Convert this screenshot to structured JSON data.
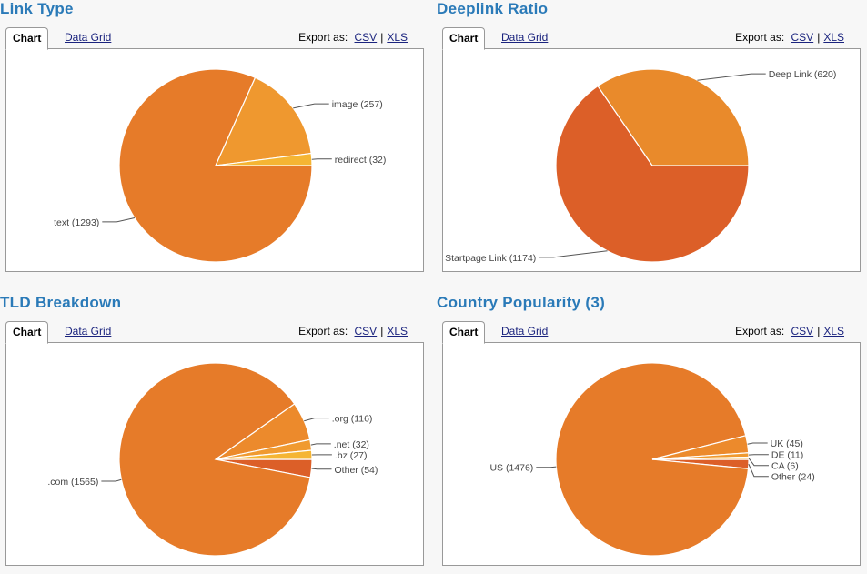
{
  "common": {
    "tab_chart": "Chart",
    "tab_grid": "Data Grid",
    "export_label": "Export as:",
    "csv": "CSV",
    "sep": "|",
    "xls": "XLS"
  },
  "chart_data": [
    {
      "type": "pie",
      "title": "Link Type",
      "slices": [
        {
          "label": "text (1293)",
          "value": 1293,
          "color": "#e67b29"
        },
        {
          "label": "image (257)",
          "value": 257,
          "color": "#ef982f"
        },
        {
          "label": "redirect (32)",
          "value": 32,
          "color": "#f5b533"
        }
      ]
    },
    {
      "type": "pie",
      "title": "Deeplink Ratio",
      "slices": [
        {
          "label": "Startpage Link (1174)",
          "value": 1174,
          "color": "#dc5f28"
        },
        {
          "label": "Deep Link (620)",
          "value": 620,
          "color": "#e98a2b"
        }
      ]
    },
    {
      "type": "pie",
      "title": "TLD Breakdown",
      "slices": [
        {
          "label": "Other (54)",
          "value": 54,
          "color": "#dc5f28"
        },
        {
          "label": ".com (1565)",
          "value": 1565,
          "color": "#e67b29"
        },
        {
          "label": ".org (116)",
          "value": 116,
          "color": "#ec8a2c"
        },
        {
          "label": ".net (32)",
          "value": 32,
          "color": "#f09a30"
        },
        {
          "label": ".bz (27)",
          "value": 27,
          "color": "#f5b533"
        }
      ]
    },
    {
      "type": "pie",
      "title": "Country Popularity (3)",
      "slices": [
        {
          "label": "Other (24)",
          "value": 24,
          "color": "#dc5f28"
        },
        {
          "label": "US (1476)",
          "value": 1476,
          "color": "#e67b29"
        },
        {
          "label": "UK (45)",
          "value": 45,
          "color": "#ec8a2c"
        },
        {
          "label": "DE (11)",
          "value": 11,
          "color": "#f09a30"
        },
        {
          "label": "CA (6)",
          "value": 6,
          "color": "#f5b533"
        }
      ]
    }
  ]
}
